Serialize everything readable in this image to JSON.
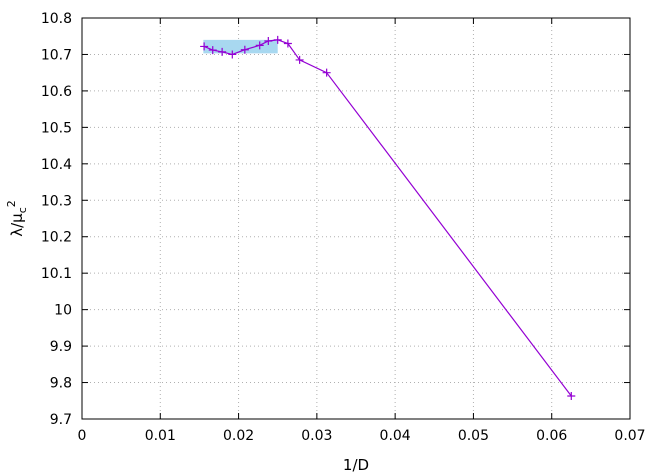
{
  "chart_data": {
    "type": "line",
    "title": "",
    "xlabel": "1/D",
    "ylabel": {
      "base": "λ/μ",
      "sub": "c",
      "sup": "2"
    },
    "xlim": [
      0,
      0.07
    ],
    "ylim": [
      9.7,
      10.8
    ],
    "xticks": [
      "0",
      "0.01",
      "0.02",
      "0.03",
      "0.04",
      "0.05",
      "0.06",
      "0.07"
    ],
    "yticks": [
      "9.7",
      "9.8",
      "9.9",
      "10",
      "10.1",
      "10.2",
      "10.3",
      "10.4",
      "10.5",
      "10.6",
      "10.7",
      "10.8"
    ],
    "grid": true,
    "legend": "none",
    "highlight_region": {
      "x": [
        0.0155,
        0.025
      ],
      "y": [
        10.703,
        10.74
      ],
      "color": "#a8d8f0"
    },
    "series": [
      {
        "color": "#9400d3",
        "marker": "plus",
        "points": [
          [
            0.0156,
            10.722
          ],
          [
            0.0167,
            10.712
          ],
          [
            0.0179,
            10.707
          ],
          [
            0.0192,
            10.7
          ],
          [
            0.0208,
            10.713
          ],
          [
            0.0227,
            10.725
          ],
          [
            0.0238,
            10.737
          ],
          [
            0.025,
            10.74
          ],
          [
            0.0263,
            10.73
          ],
          [
            0.0278,
            10.685
          ],
          [
            0.03125,
            10.65
          ],
          [
            0.0625,
            9.763
          ]
        ]
      }
    ]
  }
}
